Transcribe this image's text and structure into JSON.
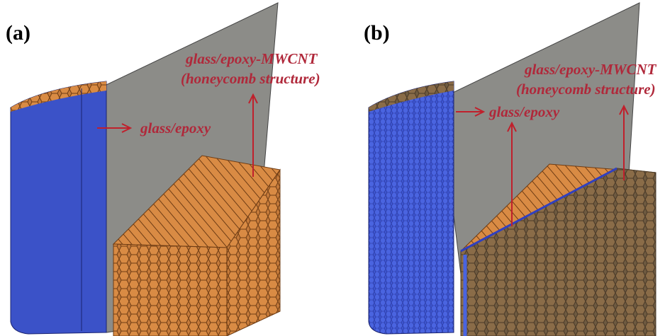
{
  "panels": [
    {
      "label": "(a)",
      "honeycomb_label": [
        "glass/epoxy-MWCNT",
        "(honeycomb structure)"
      ],
      "skin_label": "glass/epoxy"
    },
    {
      "label": "(b)",
      "honeycomb_label": [
        "glass/epoxy-MWCNT",
        "(honeycomb structure)"
      ],
      "skin_label": "glass/epoxy"
    }
  ]
}
